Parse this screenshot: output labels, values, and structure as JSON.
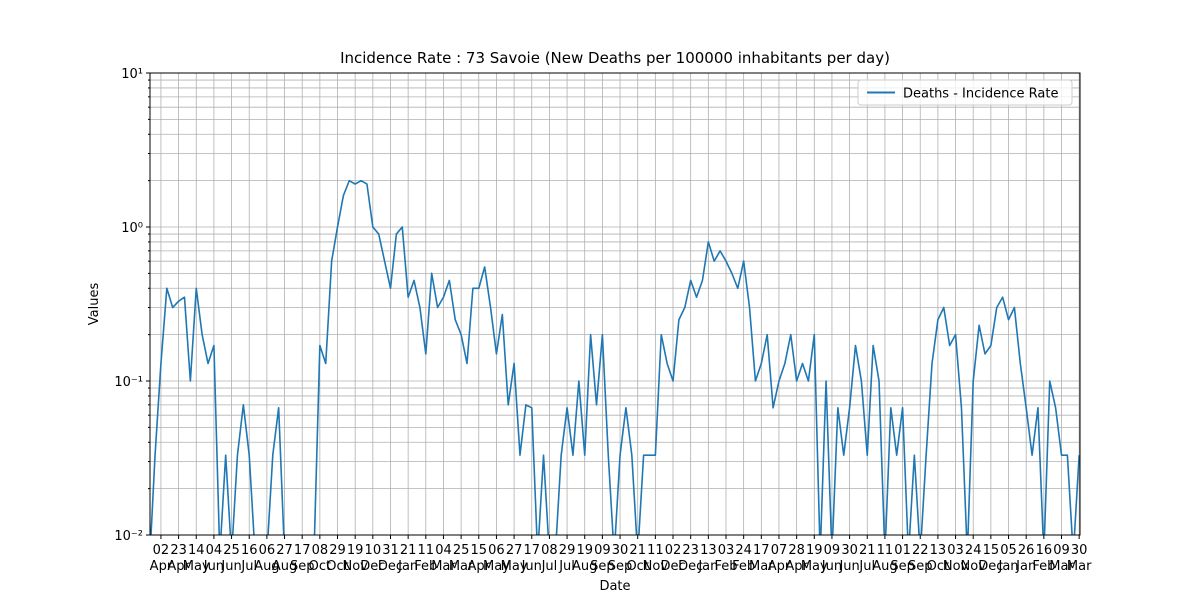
{
  "chart_data": {
    "type": "line",
    "title": "Incidence Rate : 73 Savoie (New Deaths per 100000 inhabitants per day)",
    "xlabel": "Date",
    "ylabel": "Values",
    "log_y": true,
    "grid": true,
    "legend": "upper right",
    "xlim": [
      -13,
      1093
    ],
    "ylim": [
      0.01,
      10
    ],
    "yticks": [
      {
        "value": 0.01,
        "label": "10⁻²"
      },
      {
        "value": 0.1,
        "label": "10⁻¹"
      },
      {
        "value": 1,
        "label": "10⁰"
      },
      {
        "value": 10,
        "label": "10¹"
      }
    ],
    "xticks": [
      {
        "value": 0,
        "label": "02 Apr"
      },
      {
        "value": 21,
        "label": "23 Apr"
      },
      {
        "value": 42,
        "label": "14 May"
      },
      {
        "value": 63,
        "label": "04 Jun"
      },
      {
        "value": 84,
        "label": "25 Jun"
      },
      {
        "value": 105,
        "label": "16 Jul"
      },
      {
        "value": 126,
        "label": "06 Aug"
      },
      {
        "value": 147,
        "label": "27 Aug"
      },
      {
        "value": 168,
        "label": "17 Sep"
      },
      {
        "value": 189,
        "label": "08 Oct"
      },
      {
        "value": 210,
        "label": "29 Oct"
      },
      {
        "value": 231,
        "label": "19 Nov"
      },
      {
        "value": 252,
        "label": "10 Dec"
      },
      {
        "value": 273,
        "label": "31 Dec"
      },
      {
        "value": 294,
        "label": "21 Jan"
      },
      {
        "value": 315,
        "label": "11 Feb"
      },
      {
        "value": 336,
        "label": "04 Mar"
      },
      {
        "value": 357,
        "label": "25 Mar"
      },
      {
        "value": 378,
        "label": "15 Apr"
      },
      {
        "value": 399,
        "label": "06 May"
      },
      {
        "value": 420,
        "label": "27 May"
      },
      {
        "value": 441,
        "label": "17 Jun"
      },
      {
        "value": 462,
        "label": "08 Jul"
      },
      {
        "value": 483,
        "label": "29 Jul"
      },
      {
        "value": 504,
        "label": "19 Aug"
      },
      {
        "value": 525,
        "label": "09 Sep"
      },
      {
        "value": 546,
        "label": "30 Sep"
      },
      {
        "value": 567,
        "label": "21 Oct"
      },
      {
        "value": 588,
        "label": "11 Nov"
      },
      {
        "value": 609,
        "label": "02 Dec"
      },
      {
        "value": 630,
        "label": "23 Dec"
      },
      {
        "value": 651,
        "label": "13 Jan"
      },
      {
        "value": 672,
        "label": "03 Feb"
      },
      {
        "value": 693,
        "label": "24 Feb"
      },
      {
        "value": 714,
        "label": "17 Mar"
      },
      {
        "value": 735,
        "label": "07 Apr"
      },
      {
        "value": 756,
        "label": "28 Apr"
      },
      {
        "value": 777,
        "label": "19 May"
      },
      {
        "value": 798,
        "label": "09 Jun"
      },
      {
        "value": 819,
        "label": "30 Jun"
      },
      {
        "value": 840,
        "label": "21 Jul"
      },
      {
        "value": 861,
        "label": "11 Aug"
      },
      {
        "value": 882,
        "label": "01 Sep"
      },
      {
        "value": 903,
        "label": "22 Sep"
      },
      {
        "value": 924,
        "label": "13 Oct"
      },
      {
        "value": 945,
        "label": "03 Nov"
      },
      {
        "value": 966,
        "label": "24 Nov"
      },
      {
        "value": 987,
        "label": "15 Dec"
      },
      {
        "value": 1008,
        "label": "05 Jan"
      },
      {
        "value": 1029,
        "label": "26 Jan"
      },
      {
        "value": 1050,
        "label": "16 Feb"
      },
      {
        "value": 1071,
        "label": "09 Mar"
      },
      {
        "value": 1092,
        "label": "30 Mar"
      }
    ],
    "x": [
      -13,
      -7,
      0,
      7,
      14,
      21,
      28,
      35,
      42,
      49,
      56,
      63,
      70,
      77,
      84,
      91,
      98,
      105,
      112,
      119,
      126,
      133,
      140,
      147,
      154,
      161,
      168,
      175,
      182,
      189,
      196,
      203,
      210,
      217,
      224,
      231,
      238,
      245,
      252,
      259,
      266,
      273,
      280,
      287,
      294,
      301,
      308,
      315,
      322,
      329,
      336,
      343,
      350,
      357,
      364,
      371,
      378,
      385,
      392,
      399,
      406,
      413,
      420,
      427,
      434,
      441,
      448,
      455,
      462,
      469,
      476,
      483,
      490,
      497,
      504,
      511,
      518,
      525,
      532,
      539,
      546,
      553,
      560,
      567,
      574,
      581,
      588,
      595,
      602,
      609,
      616,
      623,
      630,
      637,
      644,
      651,
      658,
      665,
      672,
      679,
      686,
      693,
      700,
      707,
      714,
      721,
      728,
      735,
      742,
      749,
      756,
      763,
      770,
      777,
      784,
      791,
      798,
      805,
      812,
      819,
      826,
      833,
      840,
      847,
      854,
      861,
      868,
      875,
      882,
      889,
      896,
      903,
      910,
      917,
      924,
      931,
      938,
      945,
      952,
      959,
      966,
      973,
      980,
      987,
      994,
      1001,
      1008,
      1015,
      1022,
      1029,
      1036,
      1043,
      1050,
      1057,
      1064,
      1071,
      1078,
      1085,
      1092
    ],
    "series": [
      {
        "name": "Deaths - Incidence Rate",
        "color": "#1f77b4",
        "values": [
          0,
          0.033,
          0.13,
          0.4,
          0.3,
          0.33,
          0.35,
          0.1,
          0.4,
          0.2,
          0.13,
          0.17,
          0,
          0.033,
          0,
          0.033,
          0.07,
          0.033,
          0,
          0,
          0,
          0.033,
          0.067,
          0,
          0,
          0,
          0,
          0,
          0,
          0.17,
          0.13,
          0.6,
          1.0,
          1.6,
          2.0,
          1.9,
          2.0,
          1.9,
          1.0,
          0.9,
          0.6,
          0.4,
          0.9,
          1.0,
          0.35,
          0.45,
          0.3,
          0.15,
          0.5,
          0.3,
          0.35,
          0.45,
          0.25,
          0.2,
          0.13,
          0.4,
          0.4,
          0.55,
          0.3,
          0.15,
          0.27,
          0.07,
          0.13,
          0.033,
          0.07,
          0.067,
          0,
          0.033,
          0,
          0,
          0.033,
          0.067,
          0.033,
          0.1,
          0.033,
          0.2,
          0.07,
          0.2,
          0.033,
          0,
          0.033,
          0.067,
          0.033,
          0,
          0.033,
          0.033,
          0.033,
          0.2,
          0.13,
          0.1,
          0.25,
          0.3,
          0.45,
          0.35,
          0.45,
          0.8,
          0.6,
          0.7,
          0.6,
          0.5,
          0.4,
          0.6,
          0.3,
          0.1,
          0.13,
          0.2,
          0.067,
          0.1,
          0.13,
          0.2,
          0.1,
          0.13,
          0.1,
          0.2,
          0,
          0.1,
          0,
          0.067,
          0.033,
          0.067,
          0.17,
          0.1,
          0.033,
          0.17,
          0.1,
          0,
          0.067,
          0.033,
          0.067,
          0,
          0.033,
          0,
          0.033,
          0.13,
          0.25,
          0.3,
          0.17,
          0.2,
          0.067,
          0,
          0.1,
          0.23,
          0.15,
          0.17,
          0.3,
          0.35,
          0.25,
          0.3,
          0.13,
          0.067,
          0.033,
          0.067,
          0,
          0.1,
          0.067,
          0.033,
          0.033,
          0,
          0.033
        ]
      }
    ]
  }
}
